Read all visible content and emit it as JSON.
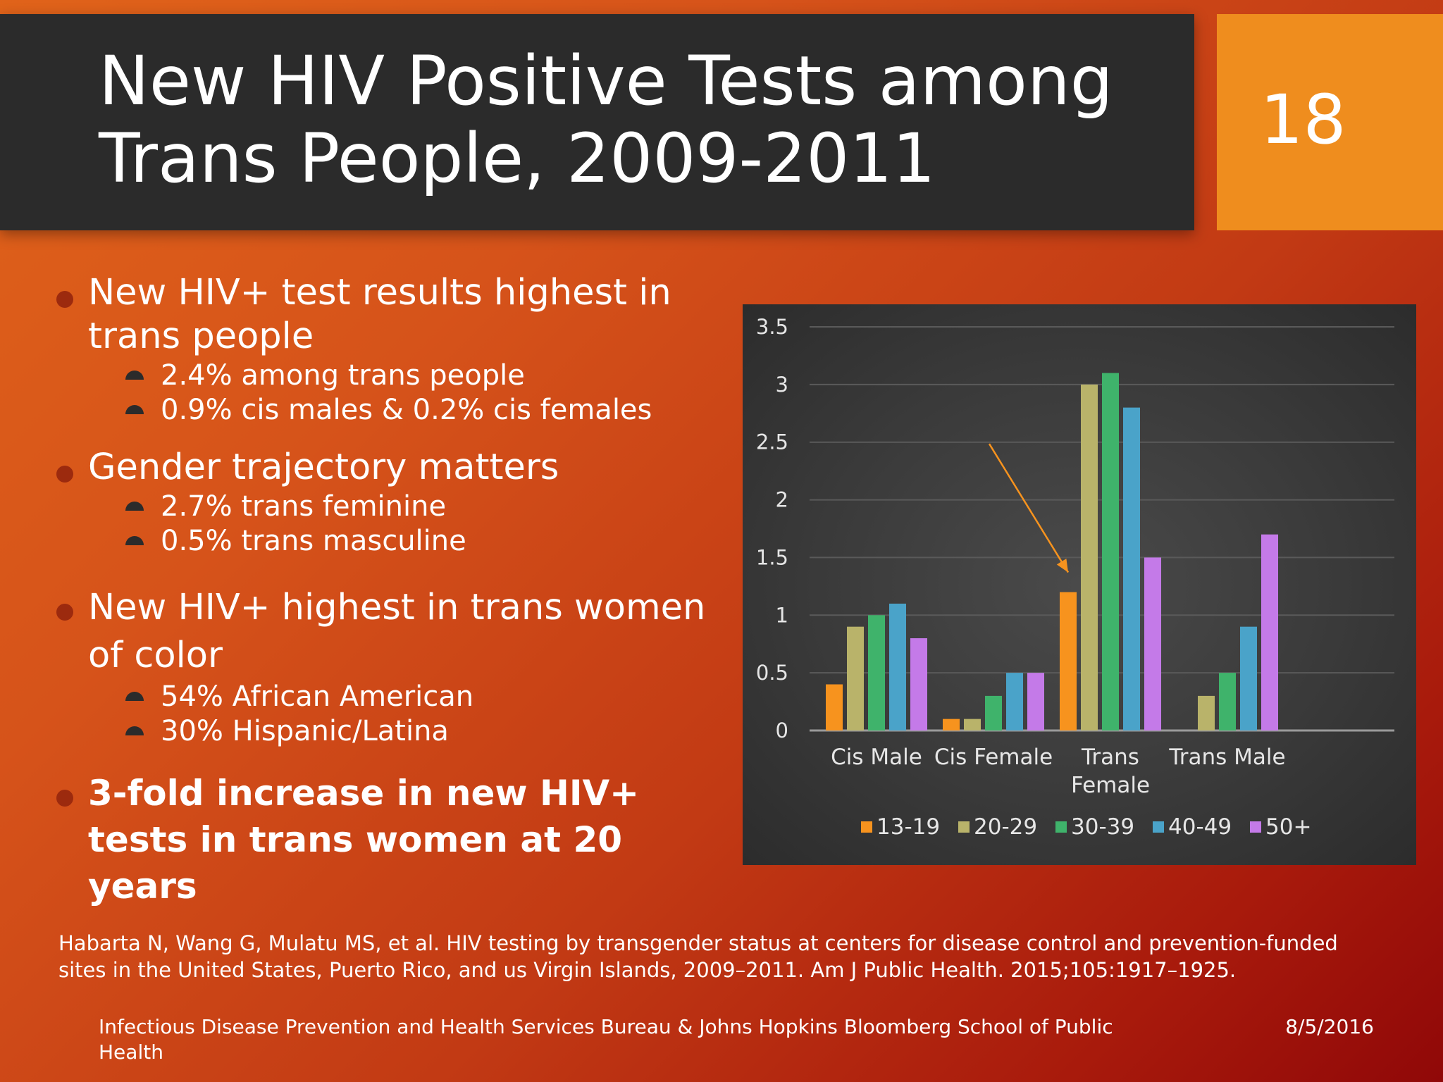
{
  "slide": {
    "title_line1": "New HIV Positive Tests among",
    "title_line2": "Trans People, 2009-2011",
    "number": "18"
  },
  "bullets": [
    {
      "text": "New HIV+ test results highest in trans people",
      "sub": [
        "2.4% among trans people",
        "0.9% cis males & 0.2% cis females"
      ]
    },
    {
      "text": "Gender trajectory matters",
      "sub": [
        "2.7% trans feminine",
        "0.5% trans masculine"
      ]
    },
    {
      "text": "New HIV+ highest in trans women of color",
      "sub": [
        "54% African American",
        "30% Hispanic/Latina"
      ]
    },
    {
      "text": "3-fold increase in new HIV+ tests in trans women at 20 years",
      "sub": []
    }
  ],
  "citation": "Habarta N, Wang G, Mulatu MS, et al. HIV testing by transgender status at centers for disease control and prevention-funded sites in the United States, Puerto Rico, and us Virgin Islands, 2009–2011. Am J Public Health. 2015;105:1917–1925.",
  "footer": {
    "organization": "Infectious Disease Prevention and Health Services Bureau & Johns Hopkins Bloomberg School of Public Health",
    "date": "8/5/2016"
  },
  "chart_data": {
    "type": "bar",
    "categories": [
      "Cis Male",
      "Cis Female",
      "Trans Female",
      "Trans Male"
    ],
    "category_label_lines": [
      [
        "Cis Male"
      ],
      [
        "Cis Female"
      ],
      [
        "Trans",
        "Female"
      ],
      [
        "Trans Male"
      ]
    ],
    "series": [
      {
        "name": "13-19",
        "color": "#f7931e",
        "values": [
          0.4,
          0.1,
          1.2,
          0
        ]
      },
      {
        "name": "20-29",
        "color": "#b9b36a",
        "values": [
          0.9,
          0.1,
          3.0,
          0.3
        ]
      },
      {
        "name": "30-39",
        "color": "#3fb36b",
        "values": [
          1.0,
          0.3,
          3.1,
          0.5
        ]
      },
      {
        "name": "40-49",
        "color": "#4aa3c9",
        "values": [
          1.1,
          0.5,
          2.8,
          0.9
        ]
      },
      {
        "name": "50+",
        "color": "#c47ae8",
        "values": [
          0.8,
          0.5,
          1.5,
          1.7
        ]
      }
    ],
    "yticks": [
      "0",
      "0.5",
      "1",
      "1.5",
      "2",
      "2.5",
      "3",
      "3.5"
    ],
    "ylim": [
      0,
      3.5
    ],
    "grid": true,
    "legend_position": "bottom",
    "annotation": "arrow pointing to Trans Female 13-19 bar",
    "annotation_color": "#f7931e",
    "title": "",
    "xlabel": "",
    "ylabel": ""
  }
}
